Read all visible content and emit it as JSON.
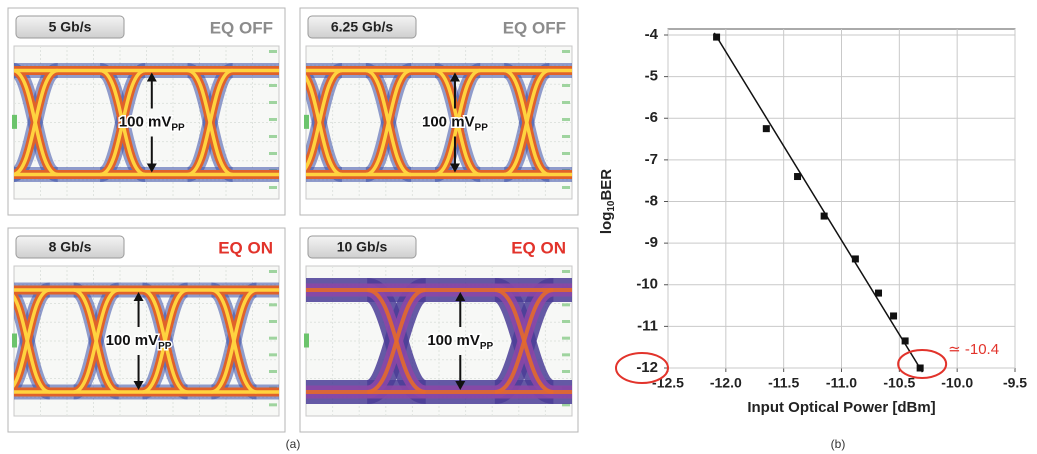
{
  "panel_a": {
    "label": "(a)",
    "eyes": [
      {
        "rate": "5 Gb/s",
        "eq": "EQ OFF",
        "eq_color": "#8c8c8c",
        "amplitude": "100 mV",
        "amplitude_sub": "PP"
      },
      {
        "rate": "6.25 Gb/s",
        "eq": "EQ OFF",
        "eq_color": "#8c8c8c",
        "amplitude": "100 mV",
        "amplitude_sub": "PP"
      },
      {
        "rate": "8 Gb/s",
        "eq": "EQ ON",
        "eq_color": "#e2332b",
        "amplitude": "100 mV",
        "amplitude_sub": "PP"
      },
      {
        "rate": "10 Gb/s",
        "eq": "EQ ON",
        "eq_color": "#e2332b",
        "amplitude": "100 mV",
        "amplitude_sub": "PP"
      }
    ]
  },
  "chart_data": {
    "type": "scatter",
    "panel_label": "(b)",
    "x_label": "Input Optical Power [dBm]",
    "y_label_parts": [
      "log",
      "10",
      "BER"
    ],
    "x": [
      -12.08,
      -11.65,
      -11.38,
      -11.15,
      -10.88,
      -10.68,
      -10.55,
      -10.45,
      -10.32
    ],
    "series": [
      {
        "color": "#111111",
        "values": [
          -4.05,
          -6.25,
          -7.4,
          -8.35,
          -9.38,
          -10.2,
          -10.75,
          -11.35,
          -12.0
        ]
      }
    ],
    "fit": {
      "x": [
        -12.1,
        -10.3
      ],
      "y": [
        -3.95,
        -12.1
      ],
      "color": "#111111"
    },
    "annotation": "≃ -10.4",
    "annotation_color": "#e2332b",
    "xlim": [
      -12.5,
      -9.5
    ],
    "xticks": [
      -12.5,
      {
        "value": -12,
        "label": "-12.0"
      },
      -11.5,
      {
        "value": -11,
        "label": "-11.0"
      },
      -10.5,
      {
        "value": -10,
        "label": "-10.0"
      },
      -9.5
    ],
    "ylim": [
      -12,
      -4
    ],
    "yticks": [
      -12,
      -11,
      -10,
      -9,
      -8,
      -7,
      -6,
      -5,
      -4
    ],
    "grid": true
  }
}
